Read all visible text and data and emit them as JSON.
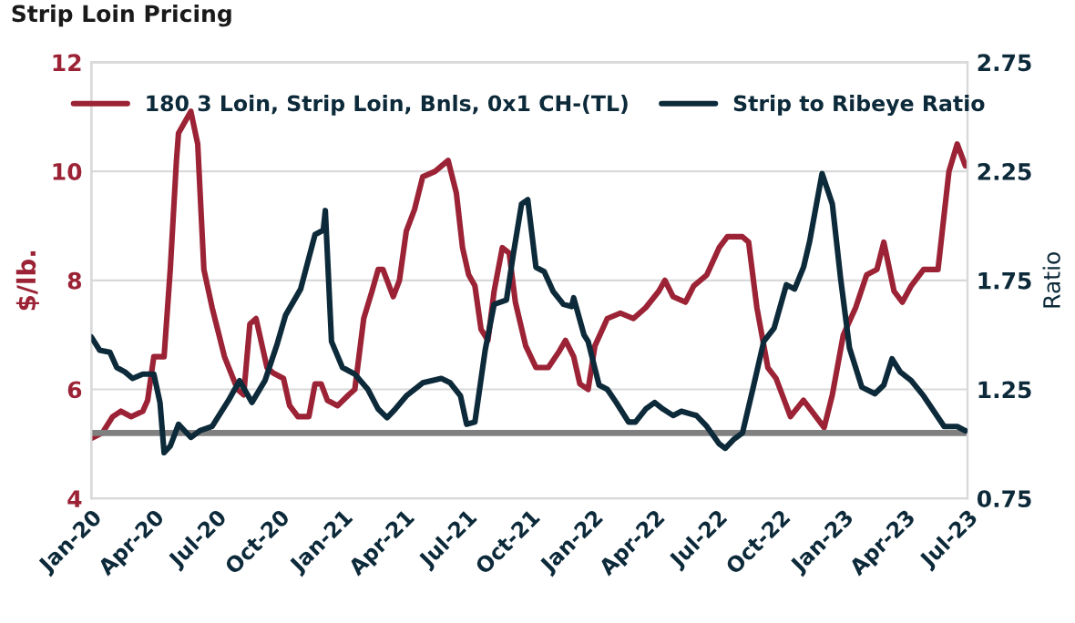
{
  "chart_data": {
    "type": "line",
    "title": "Strip Loin Pricing",
    "ylabel": "$/lb.",
    "y2label": "Ratio",
    "series": [
      {
        "name": "180 3 Loin, Strip Loin, Bnls, 0x1 CH-(TL)",
        "color": "#9b2335",
        "x": [
          "2020-01-01",
          "2020-01-17",
          "2020-02-01",
          "2020-02-13",
          "2020-02-28",
          "2020-03-16",
          "2020-03-23",
          "2020-04-01",
          "2020-04-16",
          "2020-04-25",
          "2020-05-04",
          "2020-05-07",
          "2020-05-25",
          "2020-06-04",
          "2020-06-13",
          "2020-06-25",
          "2020-07-13",
          "2020-08-01",
          "2020-08-10",
          "2020-08-19",
          "2020-08-28",
          "2020-09-13",
          "2020-09-22",
          "2020-10-07",
          "2020-10-16",
          "2020-10-28",
          "2020-11-13",
          "2020-11-22",
          "2020-12-01",
          "2020-12-10",
          "2020-12-25",
          "2021-01-10",
          "2021-01-19",
          "2021-02-01",
          "2021-02-13",
          "2021-02-22",
          "2021-03-01",
          "2021-03-16",
          "2021-03-25",
          "2021-04-04",
          "2021-04-16",
          "2021-04-28",
          "2021-05-16",
          "2021-06-04",
          "2021-06-16",
          "2021-06-25",
          "2021-07-04",
          "2021-07-13",
          "2021-07-22",
          "2021-08-01",
          "2021-08-10",
          "2021-08-22",
          "2021-09-01",
          "2021-09-10",
          "2021-09-25",
          "2021-10-10",
          "2021-10-28",
          "2021-11-13",
          "2021-11-22",
          "2021-12-04",
          "2021-12-13",
          "2021-12-25",
          "2022-01-04",
          "2022-01-22",
          "2022-02-10",
          "2022-03-01",
          "2022-03-19",
          "2022-04-07",
          "2022-04-16",
          "2022-04-28",
          "2022-05-16",
          "2022-05-28",
          "2022-06-16",
          "2022-07-04",
          "2022-07-16",
          "2022-08-07",
          "2022-08-16",
          "2022-08-28",
          "2022-09-13",
          "2022-09-25",
          "2022-10-07",
          "2022-10-16",
          "2022-11-04",
          "2022-11-16",
          "2022-12-04",
          "2022-12-16",
          "2023-01-01",
          "2023-01-19",
          "2023-02-04",
          "2023-02-19",
          "2023-03-01",
          "2023-03-16",
          "2023-03-28",
          "2023-04-10",
          "2023-04-28",
          "2023-05-19",
          "2023-06-04",
          "2023-06-16",
          "2023-06-28"
        ],
        "values": [
          5.1,
          5.2,
          5.5,
          5.6,
          5.5,
          5.6,
          5.8,
          6.6,
          6.6,
          8.2,
          10.2,
          10.7,
          11.1,
          10.5,
          8.2,
          7.5,
          6.6,
          6.0,
          5.9,
          7.2,
          7.3,
          6.4,
          6.3,
          6.2,
          5.7,
          5.5,
          5.5,
          6.1,
          6.1,
          5.8,
          5.7,
          5.9,
          6.0,
          7.3,
          7.8,
          8.2,
          8.2,
          7.7,
          8.0,
          8.9,
          9.3,
          9.9,
          10.0,
          10.2,
          9.6,
          8.6,
          8.1,
          7.9,
          7.1,
          6.9,
          7.8,
          8.6,
          8.5,
          7.6,
          6.8,
          6.4,
          6.4,
          6.7,
          6.9,
          6.6,
          6.1,
          6.0,
          6.8,
          7.3,
          7.4,
          7.3,
          7.5,
          7.8,
          8.0,
          7.7,
          7.6,
          7.9,
          8.1,
          8.6,
          8.8,
          8.8,
          8.7,
          7.5,
          6.4,
          6.2,
          5.8,
          5.5,
          5.8,
          5.6,
          5.3,
          5.9,
          7.0,
          7.5,
          8.1,
          8.2,
          8.7,
          7.8,
          7.6,
          7.9,
          8.2,
          8.2,
          10.0,
          10.5,
          10.1
        ]
      },
      {
        "name": "Strip to Ribeye Ratio",
        "color": "#0d2a3a",
        "axis": "y2",
        "x": [
          "2020-01-01",
          "2020-01-13",
          "2020-01-28",
          "2020-02-07",
          "2020-02-19",
          "2020-03-01",
          "2020-03-16",
          "2020-04-01",
          "2020-04-10",
          "2020-04-16",
          "2020-04-25",
          "2020-05-07",
          "2020-05-16",
          "2020-05-25",
          "2020-06-07",
          "2020-06-25",
          "2020-07-19",
          "2020-08-04",
          "2020-08-22",
          "2020-09-10",
          "2020-09-28",
          "2020-10-10",
          "2020-11-01",
          "2020-11-22",
          "2020-12-04",
          "2020-12-07",
          "2020-12-16",
          "2021-01-01",
          "2021-01-19",
          "2021-02-07",
          "2021-02-22",
          "2021-03-07",
          "2021-03-19",
          "2021-04-04",
          "2021-04-28",
          "2021-05-25",
          "2021-06-07",
          "2021-06-22",
          "2021-07-01",
          "2021-07-13",
          "2021-07-28",
          "2021-08-10",
          "2021-08-28",
          "2021-09-07",
          "2021-09-19",
          "2021-09-28",
          "2021-10-10",
          "2021-10-22",
          "2021-11-04",
          "2021-11-19",
          "2021-12-01",
          "2021-12-04",
          "2021-12-19",
          "2021-12-25",
          "2022-01-10",
          "2022-01-22",
          "2022-02-04",
          "2022-02-22",
          "2022-03-04",
          "2022-03-19",
          "2022-04-01",
          "2022-04-13",
          "2022-04-28",
          "2022-05-10",
          "2022-06-01",
          "2022-06-16",
          "2022-07-04",
          "2022-07-13",
          "2022-07-25",
          "2022-08-07",
          "2022-08-22",
          "2022-09-07",
          "2022-09-22",
          "2022-10-10",
          "2022-10-22",
          "2022-11-04",
          "2022-11-13",
          "2022-12-01",
          "2022-12-16",
          "2022-12-28",
          "2023-01-10",
          "2023-01-28",
          "2023-02-16",
          "2023-03-01",
          "2023-03-13",
          "2023-03-25",
          "2023-04-10",
          "2023-04-28",
          "2023-05-13",
          "2023-05-28",
          "2023-06-16",
          "2023-06-28"
        ],
        "values": [
          1.49,
          1.43,
          1.42,
          1.35,
          1.33,
          1.3,
          1.32,
          1.32,
          1.19,
          0.96,
          0.99,
          1.09,
          1.06,
          1.03,
          1.06,
          1.08,
          1.2,
          1.29,
          1.19,
          1.29,
          1.46,
          1.59,
          1.71,
          1.96,
          1.98,
          2.07,
          1.47,
          1.35,
          1.32,
          1.25,
          1.16,
          1.12,
          1.16,
          1.22,
          1.28,
          1.3,
          1.28,
          1.22,
          1.09,
          1.1,
          1.43,
          1.64,
          1.66,
          1.87,
          2.1,
          2.12,
          1.81,
          1.79,
          1.7,
          1.64,
          1.63,
          1.67,
          1.5,
          1.47,
          1.27,
          1.25,
          1.19,
          1.1,
          1.1,
          1.16,
          1.19,
          1.16,
          1.13,
          1.15,
          1.13,
          1.08,
          1.0,
          0.98,
          1.02,
          1.05,
          1.25,
          1.47,
          1.53,
          1.73,
          1.71,
          1.81,
          1.93,
          2.24,
          2.1,
          1.76,
          1.44,
          1.26,
          1.23,
          1.27,
          1.39,
          1.33,
          1.29,
          1.22,
          1.15,
          1.08,
          1.08,
          1.06
        ]
      }
    ],
    "xlim": [
      "2020-01-01",
      "2023-07-01"
    ],
    "xticks": [
      {
        "value": "2020-01-01",
        "label": "Jan-20"
      },
      {
        "value": "2020-04-01",
        "label": "Apr-20"
      },
      {
        "value": "2020-07-01",
        "label": "Jul-20"
      },
      {
        "value": "2020-10-01",
        "label": "Oct-20"
      },
      {
        "value": "2021-01-01",
        "label": "Jan-21"
      },
      {
        "value": "2021-04-01",
        "label": "Apr-21"
      },
      {
        "value": "2021-07-01",
        "label": "Jul-21"
      },
      {
        "value": "2021-10-01",
        "label": "Oct-21"
      },
      {
        "value": "2022-01-01",
        "label": "Jan-22"
      },
      {
        "value": "2022-04-01",
        "label": "Apr-22"
      },
      {
        "value": "2022-07-01",
        "label": "Jul-22"
      },
      {
        "value": "2022-10-01",
        "label": "Oct-22"
      },
      {
        "value": "2023-01-01",
        "label": "Jan-23"
      },
      {
        "value": "2023-04-01",
        "label": "Apr-23"
      },
      {
        "value": "2023-07-01",
        "label": "Jul-23"
      }
    ],
    "ylim": [
      4,
      12
    ],
    "yticks": [
      4,
      6,
      8,
      10,
      12
    ],
    "y2lim": [
      0.75,
      2.75
    ],
    "y2ticks": [
      0.75,
      1.25,
      1.75,
      2.25,
      2.75
    ],
    "ref_lines": [
      {
        "axis": "y2",
        "value": 1.05,
        "color": "#808080"
      }
    ],
    "grid": "y",
    "legend": "top",
    "line_style": "solid",
    "marker": "none"
  }
}
